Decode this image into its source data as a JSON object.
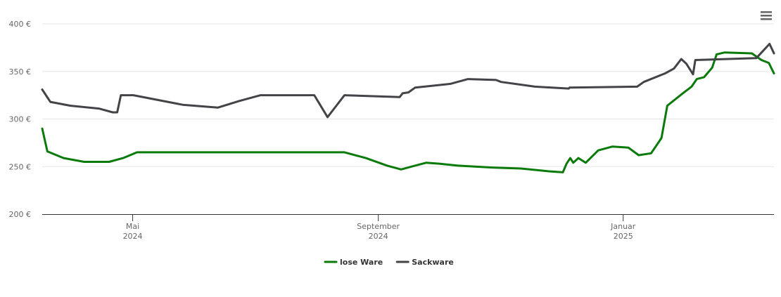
{
  "chart_data": {
    "type": "line",
    "xlim": [
      2024.21,
      2025.205
    ],
    "xticks": [
      {
        "value": 2024.333,
        "label": "Mai 2024"
      },
      {
        "value": 2024.667,
        "label": "September 2024"
      },
      {
        "value": 2025.0,
        "label": "Januar 2025"
      }
    ],
    "ylim": [
      200,
      400
    ],
    "yticks": [
      {
        "value": 200,
        "label": "200 €"
      },
      {
        "value": 250,
        "label": "250 €"
      },
      {
        "value": 300,
        "label": "300 €"
      },
      {
        "value": 350,
        "label": "350 €"
      },
      {
        "value": 400,
        "label": "400 €"
      }
    ],
    "grid": true,
    "legend": "bottom",
    "series": [
      {
        "name": "lose Ware",
        "color": "#0a7a0a",
        "x": [
          2024.21,
          2024.217,
          2024.239,
          2024.267,
          2024.301,
          2024.32,
          2024.339,
          2024.401,
          2024.621,
          2024.65,
          2024.679,
          2024.698,
          2024.712,
          2024.732,
          2024.751,
          2024.775,
          2024.822,
          2024.861,
          2024.899,
          2024.918,
          2024.923,
          2024.928,
          2024.932,
          2024.939,
          2024.949,
          2024.966,
          2024.985,
          2025.007,
          2025.021,
          2025.038,
          2025.052,
          2025.06,
          2025.081,
          2025.093,
          2025.1,
          2025.11,
          2025.121,
          2025.127,
          2025.138,
          2025.175,
          2025.188,
          2025.198,
          2025.205
        ],
        "values": [
          290,
          266,
          259,
          255,
          255,
          259,
          265,
          265,
          265,
          259,
          251,
          247,
          250,
          254,
          253,
          251,
          249,
          248,
          245,
          244,
          253,
          259,
          254,
          259,
          254,
          267,
          271,
          270,
          262,
          264,
          280,
          314,
          327,
          334,
          342,
          344,
          354,
          368,
          370,
          369,
          362,
          359,
          348
        ]
      },
      {
        "name": "Sackware",
        "color": "#434348",
        "x": [
          2024.21,
          2024.221,
          2024.248,
          2024.287,
          2024.306,
          2024.312,
          2024.317,
          2024.334,
          2024.401,
          2024.449,
          2024.478,
          2024.507,
          2024.58,
          2024.598,
          2024.61,
          2024.621,
          2024.696,
          2024.7,
          2024.708,
          2024.717,
          2024.765,
          2024.789,
          2024.827,
          2024.834,
          2024.88,
          2024.926,
          2024.927,
          2025.019,
          2025.028,
          2025.057,
          2025.069,
          2025.079,
          2025.086,
          2025.095,
          2025.098,
          2025.181,
          2025.199,
          2025.205
        ],
        "values": [
          331,
          318,
          314,
          311,
          307,
          307,
          325,
          325,
          315,
          312,
          319,
          325,
          325,
          302,
          314,
          325,
          323,
          327,
          328,
          333,
          337,
          342,
          341,
          339,
          334,
          332,
          333,
          334,
          339,
          348,
          353,
          363,
          358,
          347,
          362,
          364,
          379,
          369
        ]
      }
    ]
  }
}
